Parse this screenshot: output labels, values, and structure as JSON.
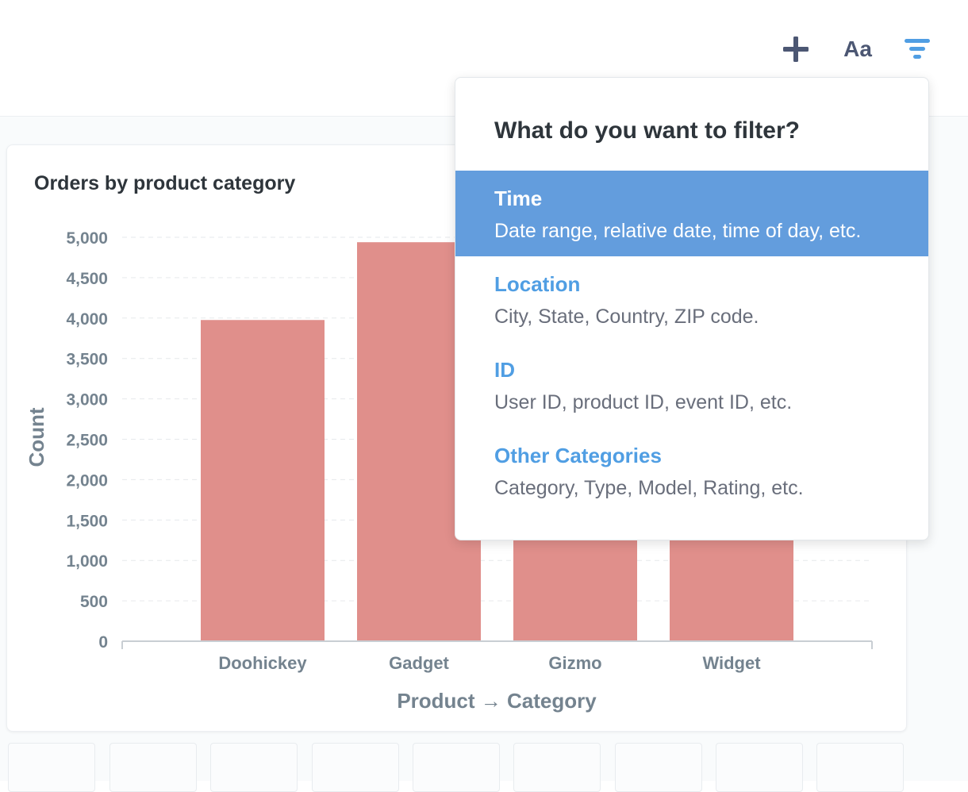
{
  "toolbar": {
    "text_button_label": "Aa"
  },
  "card": {
    "title": "Orders by product category"
  },
  "chart_data": {
    "type": "bar",
    "title": "Orders by product category",
    "categories": [
      "Doohickey",
      "Gadget",
      "Gizmo",
      "Widget"
    ],
    "values": [
      3976,
      4939,
      4784,
      5061
    ],
    "ylim": [
      0,
      5000
    ],
    "yticks": [
      0,
      500,
      1000,
      1500,
      2000,
      2500,
      3000,
      3500,
      4000,
      4500,
      5000
    ],
    "ytick_labels": [
      "0",
      "500",
      "1,000",
      "1,500",
      "2,000",
      "2,500",
      "3,000",
      "3,500",
      "4,000",
      "4,500",
      "5,000"
    ],
    "xlabel": "Product → Category",
    "ylabel": "Count",
    "grid": true,
    "bar_color": "#e08f8b"
  },
  "filter_popover": {
    "title": "What do you want to filter?",
    "items": [
      {
        "label": "Time",
        "desc": "Date range, relative date, time of day, etc."
      },
      {
        "label": "Location",
        "desc": "City, State, Country, ZIP code."
      },
      {
        "label": "ID",
        "desc": "User ID, product ID, event ID, etc."
      },
      {
        "label": "Other Categories",
        "desc": "Category, Type, Model, Rating, etc."
      }
    ]
  },
  "colors": {
    "accent": "#509ee3",
    "highlight": "#639ddd",
    "icon": "#4c5773"
  }
}
